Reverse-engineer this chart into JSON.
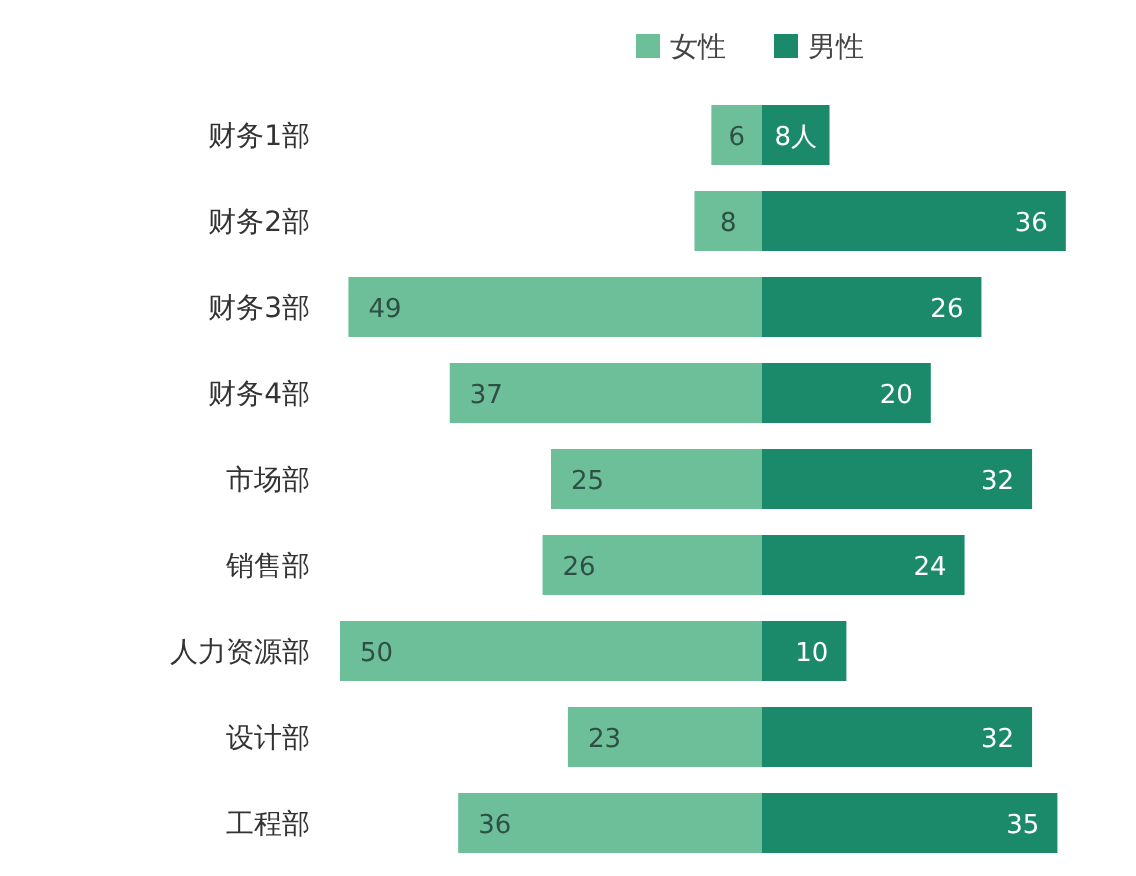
{
  "chart_data": [
    {
      "type": "bar",
      "orientation": "horizontal",
      "legend": "top right",
      "tick_labels": "y",
      "xlim": [
        50,
        0
      ],
      "categories": [
        "财务1部",
        "财务2部",
        "财务3部",
        "财务4部",
        "市场部",
        "销售部",
        "人力资源部",
        "设计部",
        "工程部"
      ],
      "series": [
        {
          "name": "女性",
          "color": "#6cbf98",
          "values": [
            6,
            8,
            49,
            37,
            25,
            26,
            50,
            23,
            36
          ],
          "value_labels": [
            "6",
            "8",
            "49",
            "37",
            "25",
            "26",
            "50",
            "23",
            "36"
          ]
        }
      ]
    },
    {
      "type": "bar",
      "orientation": "horizontal",
      "legend": "top left",
      "tick_labels": false,
      "categories": [
        null,
        null,
        null,
        null,
        null,
        null,
        null,
        null,
        null
      ],
      "series": [
        {
          "name": "男性",
          "color": "#1b8a6b",
          "values": [
            8,
            36,
            26,
            20,
            32,
            24,
            10,
            32,
            35
          ],
          "value_labels": [
            "8人",
            "36",
            "26",
            "20",
            "32",
            "24",
            "10",
            "32",
            "35"
          ]
        }
      ]
    }
  ]
}
